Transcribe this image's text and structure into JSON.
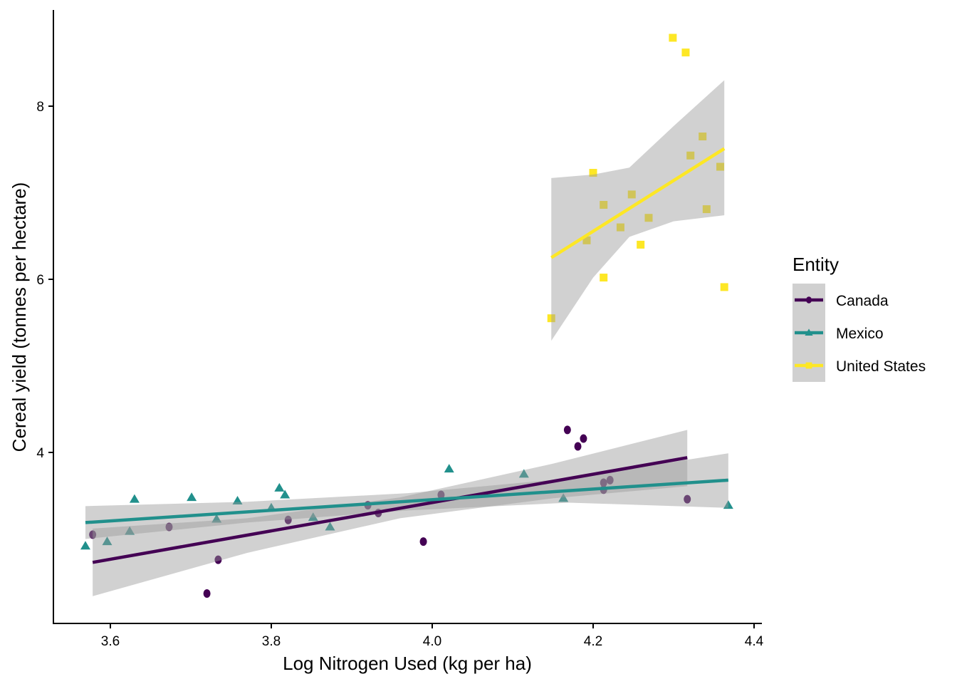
{
  "chart_data": {
    "type": "scatter",
    "xlabel": "Log Nitrogen Used (kg per ha)",
    "ylabel": "Cereal yield (tonnes per hectare)",
    "xlim": [
      3.532,
      4.409
    ],
    "ylim": [
      2.03,
      9.1
    ],
    "xticks": [
      3.6,
      3.8,
      4.0,
      4.2,
      4.4
    ],
    "xtick_labels": [
      "3.6",
      "3.8",
      "4.0",
      "4.2",
      "4.4"
    ],
    "yticks": [
      4,
      6,
      8
    ],
    "ytick_labels": [
      "4",
      "6",
      "8"
    ],
    "grid": false,
    "legend": {
      "title": "Entity",
      "placement": "right"
    },
    "series": [
      {
        "name": "Canada",
        "color": "#440154",
        "marker": "circle",
        "x": [
          3.578,
          3.673,
          3.72,
          3.734,
          3.821,
          3.92,
          3.933,
          3.989,
          4.011,
          4.168,
          4.181,
          4.188,
          4.213,
          4.213,
          4.221,
          4.317
        ],
        "y": [
          3.05,
          3.14,
          2.37,
          2.76,
          3.22,
          3.39,
          3.3,
          2.97,
          3.51,
          4.26,
          4.07,
          4.16,
          3.65,
          3.57,
          3.68,
          3.46
        ],
        "fit": {
          "x": [
            3.578,
            4.317
          ],
          "y": [
            2.73,
            3.94
          ]
        },
        "band": {
          "x": [
            3.578,
            3.77,
            3.96,
            4.15,
            4.317
          ],
          "lower": [
            2.34,
            2.84,
            3.24,
            3.47,
            3.61
          ],
          "upper": [
            3.12,
            3.24,
            3.48,
            3.87,
            4.26
          ]
        }
      },
      {
        "name": "Mexico",
        "color": "#21908C",
        "marker": "triangle",
        "x": [
          3.569,
          3.596,
          3.624,
          3.63,
          3.701,
          3.732,
          3.758,
          3.8,
          3.81,
          3.817,
          3.852,
          3.873,
          4.021,
          4.114,
          4.163,
          4.368
        ],
        "y": [
          2.92,
          2.97,
          3.09,
          3.46,
          3.48,
          3.23,
          3.44,
          3.36,
          3.59,
          3.51,
          3.25,
          3.14,
          3.81,
          3.75,
          3.47,
          3.39
        ],
        "fit": {
          "x": [
            3.569,
            4.368
          ],
          "y": [
            3.19,
            3.68
          ]
        },
        "band": {
          "x": [
            3.569,
            3.77,
            3.97,
            4.17,
            4.368
          ],
          "lower": [
            3.0,
            3.19,
            3.33,
            3.42,
            3.36
          ],
          "upper": [
            3.38,
            3.43,
            3.53,
            3.7,
            3.99
          ]
        }
      },
      {
        "name": "United States",
        "color": "#FDE725",
        "marker": "square",
        "x": [
          4.148,
          4.192,
          4.2,
          4.213,
          4.213,
          4.234,
          4.248,
          4.259,
          4.269,
          4.299,
          4.315,
          4.321,
          4.336,
          4.341,
          4.358,
          4.363
        ],
        "y": [
          5.55,
          6.45,
          7.23,
          6.02,
          6.86,
          6.6,
          6.98,
          6.4,
          6.71,
          8.79,
          8.62,
          7.43,
          7.65,
          6.81,
          7.3,
          5.91
        ],
        "fit": {
          "x": [
            4.148,
            4.363
          ],
          "y": [
            6.25,
            7.51
          ]
        },
        "band": {
          "x": [
            4.148,
            4.2,
            4.245,
            4.3,
            4.363
          ],
          "lower": [
            5.29,
            6.02,
            6.49,
            6.67,
            6.74
          ],
          "upper": [
            7.17,
            7.21,
            7.29,
            7.77,
            8.3
          ]
        }
      }
    ]
  }
}
